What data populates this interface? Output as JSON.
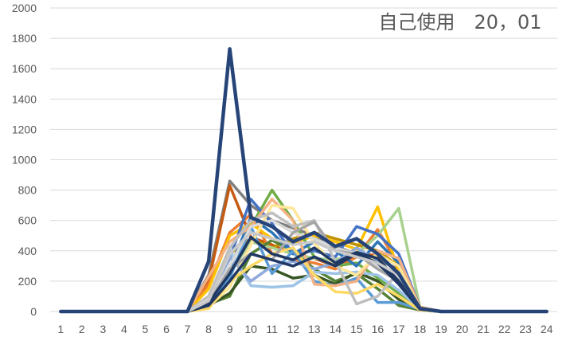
{
  "chart_data": {
    "type": "line",
    "title": "自己使用　20，01",
    "xlabel": "",
    "ylabel": "",
    "categories": [
      "1",
      "2",
      "3",
      "4",
      "5",
      "6",
      "7",
      "8",
      "9",
      "10",
      "11",
      "12",
      "13",
      "14",
      "15",
      "16",
      "17",
      "18",
      "19",
      "20",
      "21",
      "22",
      "23",
      "24"
    ],
    "ylim": [
      0,
      2000
    ],
    "yticks": [
      0,
      200,
      400,
      600,
      800,
      1000,
      1200,
      1400,
      1600,
      1800,
      2000
    ],
    "grid": true,
    "legend": "none",
    "series": [
      {
        "color": "#264478",
        "values": [
          0,
          0,
          0,
          0,
          0,
          0,
          0,
          330,
          1730,
          620,
          560,
          460,
          520,
          430,
          480,
          380,
          250,
          20,
          0,
          0,
          0,
          0,
          0,
          0
        ]
      },
      {
        "color": "#7f7f7f",
        "values": [
          0,
          0,
          0,
          0,
          0,
          0,
          0,
          240,
          860,
          700,
          600,
          550,
          500,
          430,
          380,
          340,
          280,
          30,
          0,
          0,
          0,
          0,
          0,
          0
        ]
      },
      {
        "color": "#c55a11",
        "values": [
          0,
          0,
          0,
          0,
          0,
          0,
          0,
          200,
          830,
          490,
          440,
          380,
          350,
          300,
          380,
          370,
          260,
          25,
          0,
          0,
          0,
          0,
          0,
          0
        ]
      },
      {
        "color": "#ed7d31",
        "values": [
          0,
          0,
          0,
          0,
          0,
          0,
          0,
          180,
          520,
          640,
          380,
          340,
          320,
          280,
          360,
          540,
          300,
          20,
          0,
          0,
          0,
          0,
          0,
          0
        ]
      },
      {
        "color": "#ffc000",
        "values": [
          0,
          0,
          0,
          0,
          0,
          0,
          0,
          150,
          500,
          580,
          480,
          450,
          500,
          460,
          410,
          690,
          260,
          20,
          0,
          0,
          0,
          0,
          0,
          0
        ]
      },
      {
        "color": "#bf9000",
        "values": [
          0,
          0,
          0,
          0,
          0,
          0,
          0,
          100,
          380,
          480,
          420,
          480,
          520,
          480,
          440,
          400,
          300,
          25,
          0,
          0,
          0,
          0,
          0,
          0
        ]
      },
      {
        "color": "#70ad47",
        "values": [
          0,
          0,
          0,
          0,
          0,
          0,
          0,
          80,
          300,
          560,
          800,
          600,
          360,
          300,
          320,
          220,
          120,
          15,
          0,
          0,
          0,
          0,
          0,
          0
        ]
      },
      {
        "color": "#a9d18e",
        "values": [
          0,
          0,
          0,
          0,
          0,
          0,
          0,
          60,
          250,
          460,
          420,
          380,
          350,
          340,
          380,
          500,
          680,
          30,
          0,
          0,
          0,
          0,
          0,
          0
        ]
      },
      {
        "color": "#548235",
        "values": [
          0,
          0,
          0,
          0,
          0,
          0,
          0,
          50,
          100,
          380,
          470,
          400,
          280,
          200,
          250,
          150,
          40,
          10,
          0,
          0,
          0,
          0,
          0,
          0
        ]
      },
      {
        "color": "#375623",
        "values": [
          0,
          0,
          0,
          0,
          0,
          0,
          0,
          40,
          120,
          300,
          280,
          220,
          240,
          180,
          260,
          200,
          80,
          10,
          0,
          0,
          0,
          0,
          0,
          0
        ]
      },
      {
        "color": "#4472c4",
        "values": [
          0,
          0,
          0,
          0,
          0,
          0,
          0,
          90,
          350,
          740,
          580,
          380,
          400,
          360,
          560,
          510,
          380,
          30,
          0,
          0,
          0,
          0,
          0,
          0
        ]
      },
      {
        "color": "#2e75b6",
        "values": [
          0,
          0,
          0,
          0,
          0,
          0,
          0,
          70,
          280,
          620,
          520,
          380,
          460,
          400,
          300,
          460,
          320,
          20,
          0,
          0,
          0,
          0,
          0,
          0
        ]
      },
      {
        "color": "#5b9bd5",
        "values": [
          0,
          0,
          0,
          0,
          0,
          0,
          0,
          50,
          220,
          560,
          250,
          400,
          200,
          170,
          220,
          60,
          60,
          15,
          0,
          0,
          0,
          0,
          0,
          0
        ]
      },
      {
        "color": "#9dc3e6",
        "values": [
          0,
          0,
          0,
          0,
          0,
          0,
          0,
          40,
          400,
          170,
          160,
          170,
          260,
          250,
          260,
          240,
          140,
          20,
          0,
          0,
          0,
          0,
          0,
          0
        ]
      },
      {
        "color": "#8faadc",
        "values": [
          0,
          0,
          0,
          0,
          0,
          0,
          0,
          60,
          360,
          200,
          300,
          330,
          280,
          320,
          420,
          330,
          180,
          15,
          0,
          0,
          0,
          0,
          0,
          0
        ]
      },
      {
        "color": "#f4b183",
        "values": [
          0,
          0,
          0,
          0,
          0,
          0,
          0,
          230,
          460,
          560,
          740,
          600,
          180,
          170,
          200,
          400,
          350,
          30,
          0,
          0,
          0,
          0,
          0,
          0
        ]
      },
      {
        "color": "#ffe699",
        "values": [
          0,
          0,
          0,
          0,
          0,
          0,
          0,
          30,
          160,
          440,
          700,
          680,
          450,
          300,
          240,
          380,
          300,
          20,
          0,
          0,
          0,
          0,
          0,
          0
        ]
      },
      {
        "color": "#ffd966",
        "values": [
          0,
          0,
          0,
          0,
          0,
          0,
          0,
          20,
          200,
          300,
          380,
          420,
          240,
          130,
          120,
          180,
          100,
          10,
          0,
          0,
          0,
          0,
          0,
          0
        ]
      },
      {
        "color": "#bfbfbf",
        "values": [
          0,
          0,
          0,
          0,
          0,
          0,
          0,
          100,
          420,
          600,
          650,
          560,
          600,
          330,
          50,
          100,
          260,
          20,
          0,
          0,
          0,
          0,
          0,
          0
        ]
      },
      {
        "color": "#d9d9d9",
        "values": [
          0,
          0,
          0,
          0,
          0,
          0,
          0,
          80,
          300,
          560,
          600,
          520,
          480,
          420,
          380,
          300,
          220,
          15,
          0,
          0,
          0,
          0,
          0,
          0
        ]
      },
      {
        "color": "#a5a5a5",
        "values": [
          0,
          0,
          0,
          0,
          0,
          0,
          0,
          60,
          280,
          380,
          340,
          520,
          590,
          400,
          380,
          280,
          200,
          20,
          0,
          0,
          0,
          0,
          0,
          0
        ]
      },
      {
        "color": "#1f3864",
        "values": [
          0,
          0,
          0,
          0,
          0,
          0,
          0,
          60,
          250,
          490,
          380,
          340,
          420,
          320,
          390,
          350,
          200,
          20,
          0,
          0,
          0,
          0,
          0,
          0
        ]
      },
      {
        "color": "#203864",
        "values": [
          0,
          0,
          0,
          0,
          0,
          0,
          0,
          40,
          200,
          380,
          340,
          300,
          360,
          300,
          380,
          320,
          180,
          15,
          0,
          0,
          0,
          0,
          0,
          0
        ]
      },
      {
        "color": "#c9c9c9",
        "values": [
          0,
          0,
          0,
          0,
          0,
          0,
          0,
          70,
          380,
          520,
          480,
          440,
          460,
          400,
          360,
          320,
          240,
          20,
          0,
          0,
          0,
          0,
          0,
          0
        ]
      }
    ]
  }
}
